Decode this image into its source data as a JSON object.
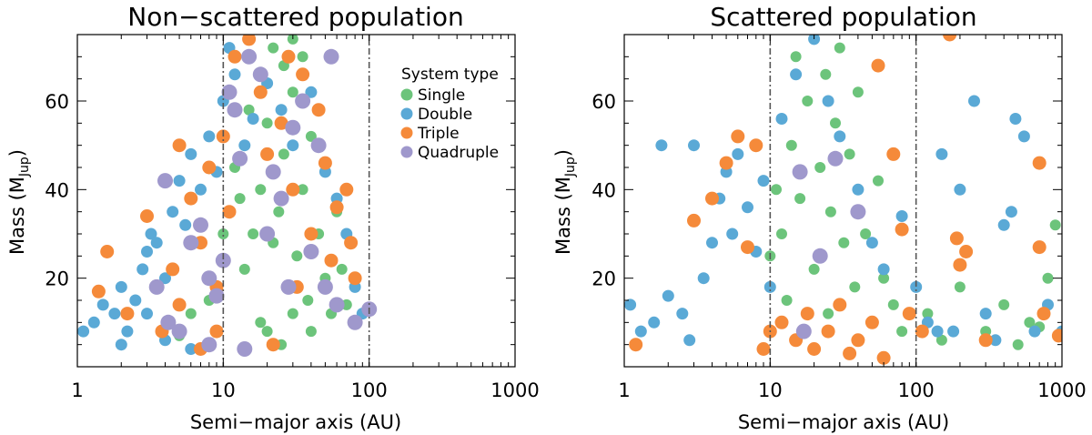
{
  "chart_data": [
    {
      "type": "scatter",
      "title": "Non−scattered population",
      "xlabel": "Semi−major axis (AU)",
      "ylabel_main": "Mass (M",
      "ylabel_sub": "Jup",
      "ylabel_close": ")",
      "x_scale": "log",
      "xlim": [
        1,
        1000
      ],
      "ylim": [
        0,
        75
      ],
      "x_ticks": [
        "1",
        "10",
        "100",
        "1000"
      ],
      "y_ticks": [
        "20",
        "40",
        "60"
      ],
      "reference_lines_au": [
        10,
        100
      ],
      "legend": {
        "title": "System type",
        "placement": "top-right",
        "entries": [
          "Single",
          "Double",
          "Triple",
          "Quadruple"
        ]
      },
      "series": [
        {
          "name": "Single",
          "color": "#6cc47b",
          "points": [
            [
              14,
              22
            ],
            [
              16,
              30
            ],
            [
              18,
              40
            ],
            [
              20,
              55
            ],
            [
              22,
              28
            ],
            [
              24,
              35
            ],
            [
              26,
              48
            ],
            [
              28,
              18
            ],
            [
              30,
              62
            ],
            [
              32,
              25
            ],
            [
              35,
              40
            ],
            [
              38,
              15
            ],
            [
              40,
              52
            ],
            [
              45,
              30
            ],
            [
              50,
              20
            ],
            [
              55,
              12
            ],
            [
              60,
              35
            ],
            [
              65,
              22
            ],
            [
              70,
              14
            ],
            [
              18,
              10
            ],
            [
              22,
              72
            ],
            [
              26,
              68
            ],
            [
              30,
              74
            ],
            [
              35,
              70
            ],
            [
              12,
              45
            ],
            [
              15,
              58
            ],
            [
              20,
              8
            ],
            [
              25,
              5
            ],
            [
              30,
              12
            ],
            [
              40,
              8
            ],
            [
              8,
              15
            ],
            [
              6,
              12
            ],
            [
              5,
              7
            ],
            [
              10,
              30
            ],
            [
              13,
              38
            ]
          ]
        },
        {
          "name": "Double",
          "color": "#5aa9d6",
          "points": [
            [
              1.1,
              8
            ],
            [
              1.3,
              10
            ],
            [
              1.5,
              14
            ],
            [
              1.8,
              12
            ],
            [
              2,
              18
            ],
            [
              2.2,
              8
            ],
            [
              2.5,
              15
            ],
            [
              2.8,
              22
            ],
            [
              3,
              26
            ],
            [
              3.2,
              30
            ],
            [
              3.5,
              28
            ],
            [
              4,
              20
            ],
            [
              4.5,
              35
            ],
            [
              5,
              42
            ],
            [
              5.5,
              32
            ],
            [
              6,
              48
            ],
            [
              7,
              40
            ],
            [
              8,
              52
            ],
            [
              9,
              44
            ],
            [
              10,
              60
            ],
            [
              11,
              72
            ],
            [
              12,
              66
            ],
            [
              14,
              50
            ],
            [
              16,
              56
            ],
            [
              20,
              64
            ],
            [
              25,
              58
            ],
            [
              30,
              50
            ],
            [
              40,
              62
            ],
            [
              50,
              44
            ],
            [
              60,
              38
            ],
            [
              70,
              30
            ],
            [
              80,
              18
            ],
            [
              90,
              12
            ],
            [
              3,
              12
            ],
            [
              2,
              5
            ],
            [
              4,
              6
            ],
            [
              6,
              4
            ]
          ]
        },
        {
          "name": "Triple",
          "color": "#f58a3a",
          "points": [
            [
              1.4,
              17
            ],
            [
              1.6,
              26
            ],
            [
              2.2,
              12
            ],
            [
              3,
              34
            ],
            [
              3.8,
              8
            ],
            [
              4.5,
              22
            ],
            [
              5,
              50
            ],
            [
              6,
              38
            ],
            [
              7,
              28
            ],
            [
              8,
              45
            ],
            [
              9,
              18
            ],
            [
              10,
              52
            ],
            [
              11,
              35
            ],
            [
              12,
              70
            ],
            [
              15,
              74
            ],
            [
              18,
              62
            ],
            [
              20,
              48
            ],
            [
              25,
              55
            ],
            [
              28,
              70
            ],
            [
              30,
              40
            ],
            [
              35,
              66
            ],
            [
              40,
              30
            ],
            [
              45,
              58
            ],
            [
              50,
              46
            ],
            [
              55,
              24
            ],
            [
              60,
              36
            ],
            [
              70,
              40
            ],
            [
              75,
              28
            ],
            [
              80,
              20
            ],
            [
              9,
              8
            ],
            [
              7,
              4
            ],
            [
              5,
              14
            ],
            [
              22,
              5
            ],
            [
              32,
              18
            ]
          ]
        },
        {
          "name": "Quadruple",
          "color": "#9f98cc",
          "points": [
            [
              3.5,
              18
            ],
            [
              4,
              42
            ],
            [
              4.2,
              10
            ],
            [
              5,
              8
            ],
            [
              6,
              28
            ],
            [
              7,
              32
            ],
            [
              8,
              20
            ],
            [
              9,
              16
            ],
            [
              10,
              24
            ],
            [
              11,
              62
            ],
            [
              12,
              58
            ],
            [
              13,
              47
            ],
            [
              15,
              70
            ],
            [
              18,
              66
            ],
            [
              20,
              30
            ],
            [
              22,
              44
            ],
            [
              25,
              38
            ],
            [
              28,
              18
            ],
            [
              30,
              54
            ],
            [
              35,
              60
            ],
            [
              40,
              26
            ],
            [
              45,
              50
            ],
            [
              50,
              18
            ],
            [
              55,
              70
            ],
            [
              60,
              14
            ],
            [
              100,
              13
            ],
            [
              80,
              10
            ],
            [
              8,
              5
            ],
            [
              14,
              4
            ]
          ]
        }
      ]
    },
    {
      "type": "scatter",
      "title": "Scattered population",
      "xlabel": "Semi−major axis (AU)",
      "ylabel_main": "Mass (M",
      "ylabel_sub": "Jup",
      "ylabel_close": ")",
      "x_scale": "log",
      "xlim": [
        1,
        1000
      ],
      "ylim": [
        0,
        75
      ],
      "x_ticks": [
        "1",
        "10",
        "100",
        "1000"
      ],
      "y_ticks": [
        "20",
        "40",
        "60"
      ],
      "reference_lines_au": [
        10,
        100
      ],
      "series": [
        {
          "name": "Single",
          "color": "#6cc47b",
          "points": [
            [
              12,
              30
            ],
            [
              14,
              50
            ],
            [
              15,
              70
            ],
            [
              16,
              38
            ],
            [
              18,
              60
            ],
            [
              20,
              22
            ],
            [
              22,
              45
            ],
            [
              24,
              66
            ],
            [
              25,
              12
            ],
            [
              26,
              35
            ],
            [
              28,
              55
            ],
            [
              30,
              72
            ],
            [
              32,
              28
            ],
            [
              35,
              48
            ],
            [
              38,
              18
            ],
            [
              40,
              62
            ],
            [
              45,
              30
            ],
            [
              50,
              10
            ],
            [
              55,
              42
            ],
            [
              60,
              20
            ],
            [
              70,
              14
            ],
            [
              80,
              8
            ],
            [
              10,
              25
            ],
            [
              11,
              40
            ],
            [
              13,
              15
            ],
            [
              150,
              6
            ],
            [
              200,
              18
            ],
            [
              300,
              8
            ],
            [
              400,
              14
            ],
            [
              500,
              5
            ],
            [
              600,
              10
            ],
            [
              800,
              20
            ],
            [
              900,
              32
            ],
            [
              700,
              9
            ],
            [
              120,
              12
            ]
          ]
        },
        {
          "name": "Double",
          "color": "#5aa9d6",
          "points": [
            [
              1.1,
              14
            ],
            [
              1.3,
              8
            ],
            [
              1.6,
              10
            ],
            [
              1.8,
              50
            ],
            [
              2,
              16
            ],
            [
              2.5,
              12
            ],
            [
              2.8,
              6
            ],
            [
              3,
              50
            ],
            [
              3.5,
              20
            ],
            [
              4,
              28
            ],
            [
              4.5,
              38
            ],
            [
              5,
              44
            ],
            [
              5.5,
              30
            ],
            [
              6,
              48
            ],
            [
              7,
              36
            ],
            [
              8,
              26
            ],
            [
              9,
              42
            ],
            [
              10,
              18
            ],
            [
              12,
              56
            ],
            [
              15,
              66
            ],
            [
              20,
              74
            ],
            [
              25,
              60
            ],
            [
              30,
              52
            ],
            [
              40,
              40
            ],
            [
              50,
              28
            ],
            [
              60,
              22
            ],
            [
              80,
              34
            ],
            [
              100,
              18
            ],
            [
              120,
              10
            ],
            [
              150,
              48
            ],
            [
              180,
              8
            ],
            [
              200,
              40
            ],
            [
              250,
              60
            ],
            [
              300,
              12
            ],
            [
              400,
              32
            ],
            [
              450,
              35
            ],
            [
              480,
              56
            ],
            [
              550,
              52
            ],
            [
              650,
              8
            ],
            [
              800,
              14
            ],
            [
              1000,
              8
            ],
            [
              140,
              8
            ],
            [
              350,
              6
            ]
          ]
        },
        {
          "name": "Triple",
          "color": "#f58a3a",
          "points": [
            [
              1.2,
              5
            ],
            [
              3,
              33
            ],
            [
              4,
              38
            ],
            [
              5,
              46
            ],
            [
              6,
              52
            ],
            [
              7,
              27
            ],
            [
              8,
              50
            ],
            [
              9,
              4
            ],
            [
              10,
              8
            ],
            [
              12,
              10
            ],
            [
              15,
              6
            ],
            [
              18,
              12
            ],
            [
              20,
              4
            ],
            [
              25,
              8
            ],
            [
              30,
              14
            ],
            [
              40,
              6
            ],
            [
              50,
              10
            ],
            [
              55,
              68
            ],
            [
              70,
              48
            ],
            [
              80,
              31
            ],
            [
              90,
              12
            ],
            [
              110,
              8
            ],
            [
              170,
              75
            ],
            [
              190,
              29
            ],
            [
              200,
              23
            ],
            [
              220,
              26
            ],
            [
              300,
              6
            ],
            [
              700,
              46
            ],
            [
              700,
              27
            ],
            [
              750,
              12
            ],
            [
              950,
              7
            ],
            [
              60,
              2
            ],
            [
              35,
              3
            ]
          ]
        },
        {
          "name": "Quadruple",
          "color": "#9f98cc",
          "points": [
            [
              16,
              44
            ],
            [
              17,
              8
            ],
            [
              22,
              25
            ],
            [
              28,
              47
            ],
            [
              40,
              35
            ]
          ]
        }
      ]
    }
  ]
}
